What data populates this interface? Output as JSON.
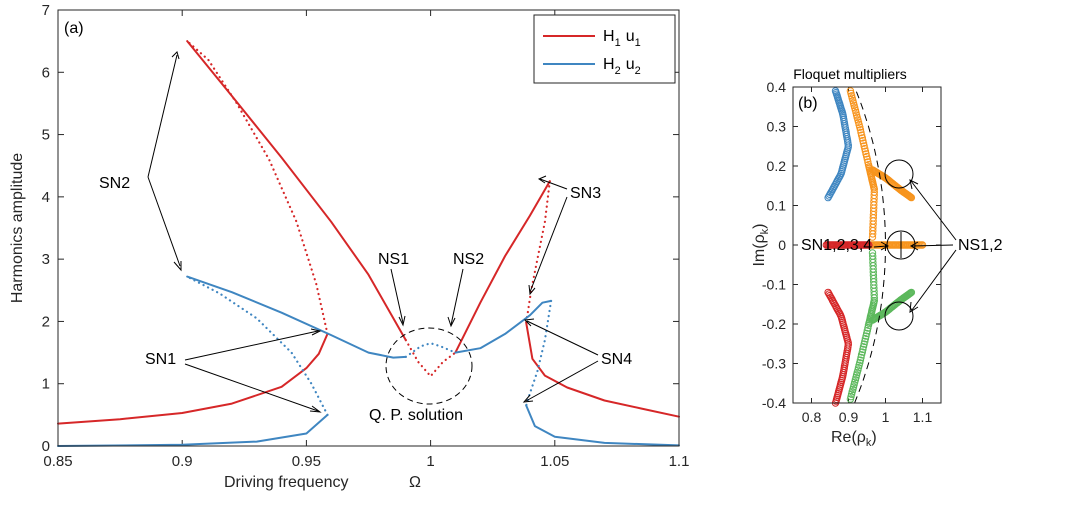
{
  "colors": {
    "red": "#d62728",
    "blue": "#3f86c1",
    "orange": "#f7941d",
    "green": "#5cb85c",
    "axis": "#262626"
  },
  "chart_data": [
    {
      "type": "line",
      "panel_label": "(a)",
      "xlabel": "Driving frequency",
      "xlabel_symbol": "Ω",
      "ylabel": "Harmonics amplitude",
      "xlim": [
        0.85,
        1.1
      ],
      "ylim": [
        0,
        7
      ],
      "xticks": [
        "0.85",
        "0.9",
        "0.95",
        "1",
        "1.05",
        "1.1"
      ],
      "yticks": [
        "0",
        "1",
        "2",
        "3",
        "4",
        "5",
        "6",
        "7"
      ],
      "legend_position": "top-right",
      "legend": [
        {
          "H": "H",
          "sub": "1",
          "u": "u",
          "usub": "1"
        },
        {
          "H": "H",
          "sub": "2",
          "u": "u",
          "usub": "2"
        }
      ],
      "series": [
        {
          "name": "H1 u1",
          "color_key": "red",
          "segments": [
            {
              "style": "solid",
              "points": [
                [
                  0.85,
                  0.36
                ],
                [
                  0.875,
                  0.43
                ],
                [
                  0.9,
                  0.53
                ],
                [
                  0.92,
                  0.68
                ],
                [
                  0.94,
                  0.95
                ],
                [
                  0.95,
                  1.25
                ],
                [
                  0.955,
                  1.48
                ],
                [
                  0.9585,
                  1.8
                ]
              ]
            },
            {
              "style": "dotted",
              "points": [
                [
                  0.9585,
                  1.8
                ],
                [
                  0.954,
                  2.6
                ],
                [
                  0.946,
                  3.6
                ],
                [
                  0.935,
                  4.6
                ],
                [
                  0.922,
                  5.5
                ],
                [
                  0.9105,
                  6.2
                ],
                [
                  0.902,
                  6.5
                ]
              ]
            },
            {
              "style": "solid",
              "points": [
                [
                  0.902,
                  6.5
                ],
                [
                  0.92,
                  5.62
                ],
                [
                  0.94,
                  4.63
                ],
                [
                  0.96,
                  3.6
                ],
                [
                  0.975,
                  2.75
                ],
                [
                  0.99,
                  1.7
                ]
              ]
            },
            {
              "style": "dotted",
              "points": [
                [
                  0.99,
                  1.7
                ],
                [
                  0.995,
                  1.35
                ],
                [
                  1.0,
                  1.12
                ],
                [
                  1.005,
                  1.35
                ],
                [
                  1.01,
                  1.5
                ]
              ]
            },
            {
              "style": "solid",
              "points": [
                [
                  1.01,
                  1.5
                ],
                [
                  1.02,
                  2.3
                ],
                [
                  1.03,
                  3.05
                ],
                [
                  1.04,
                  3.7
                ],
                [
                  1.048,
                  4.25
                ]
              ]
            },
            {
              "style": "dotted",
              "points": [
                [
                  1.048,
                  4.25
                ],
                [
                  1.046,
                  3.6
                ],
                [
                  1.043,
                  3.0
                ],
                [
                  1.0405,
                  2.5
                ],
                [
                  1.0385,
                  1.98
                ]
              ]
            },
            {
              "style": "solid",
              "points": [
                [
                  1.0385,
                  1.98
                ],
                [
                  1.041,
                  1.4
                ],
                [
                  1.046,
                  1.13
                ],
                [
                  1.055,
                  0.94
                ],
                [
                  1.07,
                  0.73
                ],
                [
                  1.085,
                  0.6
                ],
                [
                  1.1,
                  0.47
                ]
              ]
            }
          ]
        },
        {
          "name": "H2 u2",
          "color_key": "blue",
          "segments": [
            {
              "style": "solid",
              "points": [
                [
                  0.85,
                  0.0
                ],
                [
                  0.9,
                  0.02
                ],
                [
                  0.93,
                  0.07
                ],
                [
                  0.95,
                  0.2
                ],
                [
                  0.9585,
                  0.5
                ]
              ]
            },
            {
              "style": "dotted",
              "points": [
                [
                  0.9585,
                  0.5
                ],
                [
                  0.952,
                  1.0
                ],
                [
                  0.944,
                  1.5
                ],
                [
                  0.93,
                  2.05
                ],
                [
                  0.915,
                  2.45
                ],
                [
                  0.902,
                  2.72
                ]
              ]
            },
            {
              "style": "solid",
              "points": [
                [
                  0.902,
                  2.72
                ],
                [
                  0.92,
                  2.47
                ],
                [
                  0.94,
                  2.14
                ],
                [
                  0.96,
                  1.78
                ],
                [
                  0.975,
                  1.5
                ],
                [
                  0.985,
                  1.42
                ],
                [
                  0.99,
                  1.43
                ]
              ]
            },
            {
              "style": "dotted",
              "points": [
                [
                  0.99,
                  1.43
                ],
                [
                  0.996,
                  1.6
                ],
                [
                  1.0,
                  1.65
                ],
                [
                  1.004,
                  1.6
                ],
                [
                  1.01,
                  1.5
                ]
              ]
            },
            {
              "style": "solid",
              "points": [
                [
                  1.01,
                  1.5
                ],
                [
                  1.02,
                  1.57
                ],
                [
                  1.03,
                  1.8
                ],
                [
                  1.04,
                  2.1
                ],
                [
                  1.045,
                  2.3
                ],
                [
                  1.0485,
                  2.33
                ]
              ]
            },
            {
              "style": "dotted",
              "points": [
                [
                  1.0485,
                  2.33
                ],
                [
                  1.046,
                  1.7
                ],
                [
                  1.043,
                  1.2
                ],
                [
                  1.04,
                  0.85
                ],
                [
                  1.0385,
                  0.65
                ]
              ]
            },
            {
              "style": "solid",
              "points": [
                [
                  1.0385,
                  0.65
                ],
                [
                  1.042,
                  0.32
                ],
                [
                  1.05,
                  0.15
                ],
                [
                  1.07,
                  0.05
                ],
                [
                  1.1,
                  0.01
                ]
              ]
            }
          ]
        }
      ],
      "annotations": [
        "SN2",
        "SN3",
        "NS1",
        "NS2",
        "SN1",
        "SN4",
        "Q. P. solution"
      ]
    },
    {
      "type": "scatter",
      "panel_label": "(b)",
      "title": "Floquet multipliers",
      "xlabel": "Re(ρ",
      "xlabel_sub": "k",
      "xlabel_close": ")",
      "ylabel": "Im(ρ",
      "ylabel_sub": "k",
      "ylabel_close": ")",
      "xlim": [
        0.75,
        1.15
      ],
      "ylim": [
        -0.4,
        0.4
      ],
      "xticks": [
        "0.8",
        "0.9",
        "1",
        "1.1"
      ],
      "yticks": [
        "0.4",
        "0.3",
        "0.2",
        "0.1",
        "0",
        "-0.1",
        "-0.2",
        "-0.3",
        "-0.4"
      ],
      "unit_circle": true,
      "annotations": [
        "SN1,2,3,4",
        "NS1,2"
      ]
    }
  ]
}
